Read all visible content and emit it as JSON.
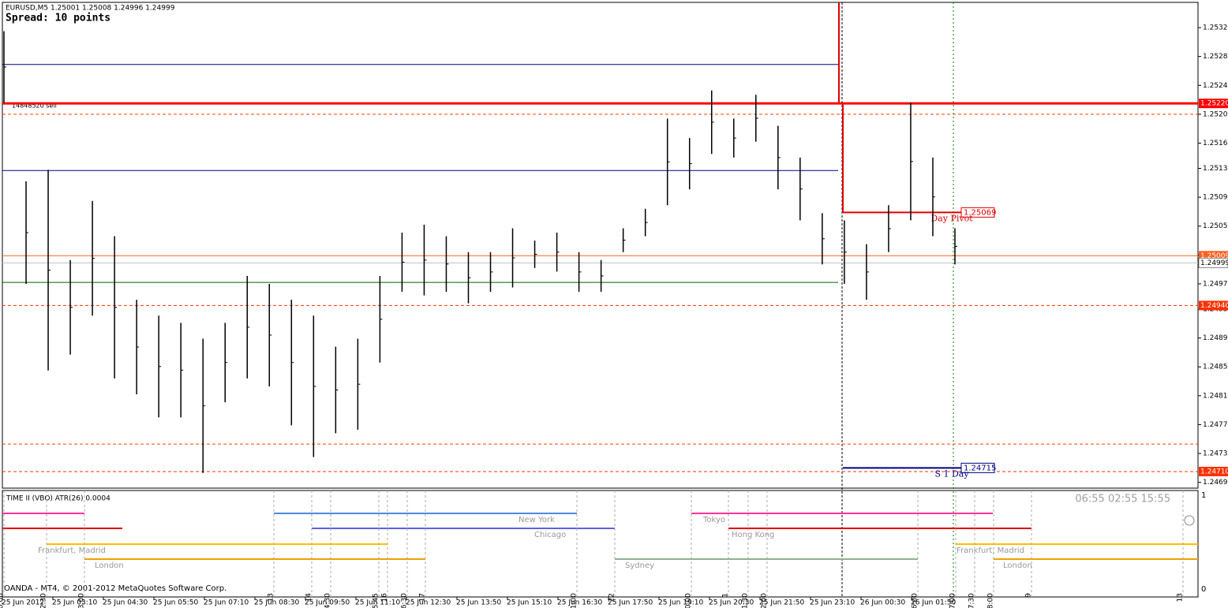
{
  "chart_data": {
    "type": "hilo",
    "title": "EURUSD,M5  1.25001 1.25008 1.24996 1.24999",
    "subtitle": "Spread: 10 points",
    "order_label": "14848520 sell",
    "color": "#000000",
    "high": [
      1.2532,
      1.25112,
      1.25128,
      1.25003,
      1.25085,
      1.25036,
      1.24948,
      1.24926,
      1.24916,
      1.24894,
      1.24916,
      1.24981,
      1.2497,
      1.24948,
      1.24926,
      1.24883,
      1.24894,
      1.24981,
      1.25041,
      1.25052,
      1.25036,
      1.25014,
      1.25014,
      1.25047,
      1.2503,
      1.25041,
      1.25014,
      1.25003,
      1.25047,
      1.25074,
      1.25199,
      1.25172,
      1.25238,
      1.25199,
      1.25232,
      1.25189,
      1.25145,
      1.25068,
      1.25058,
      1.25025,
      1.25079,
      1.25221,
      1.25145,
      1.25047
    ],
    "low": [
      1.25221,
      1.2497,
      1.2485,
      1.24872,
      1.24926,
      1.24839,
      1.24817,
      1.24785,
      1.24785,
      1.24708,
      1.24806,
      1.24839,
      1.24828,
      1.24774,
      1.2473,
      1.24763,
      1.24768,
      1.24861,
      1.24959,
      1.24954,
      1.24959,
      1.24943,
      1.24959,
      1.24965,
      1.24992,
      1.24987,
      1.24959,
      1.24959,
      1.25014,
      1.25036,
      1.25079,
      1.25101,
      1.2515,
      1.25145,
      1.25167,
      1.25101,
      1.25058,
      1.24997,
      1.2497,
      1.24948,
      1.25014,
      1.25058,
      1.25036,
      1.24997
    ],
    "ylim": [
      1.24687,
      1.2536
    ],
    "yticks": [
      1.25325,
      1.25285,
      1.25245,
      1.25205,
      1.25165,
      {
        "value": 1.2513,
        "label": "1.25130"
      },
      {
        "value": 1.2509,
        "label": "1.25090"
      },
      {
        "value": 1.2505,
        "label": "1.25050"
      },
      {
        "value": 1.2501,
        "label": "1.25010"
      },
      {
        "value": 1.2497,
        "label": "1.24970"
      },
      1.24935,
      1.24895,
      1.24855,
      1.24815,
      1.24775,
      1.24735,
      1.24695
    ],
    "levels": [
      {
        "value": 1.25274,
        "color": "#000080"
      },
      {
        "value": 1.25127,
        "color": "#000080"
      },
      {
        "value": 1.24972,
        "color": "#006400"
      },
      {
        "value": 1.2522,
        "label": "1.25220",
        "color": "#ff0000"
      },
      {
        "value": 1.25205,
        "color": "#ff4500"
      },
      {
        "value": 1.25009,
        "label": "1.25009",
        "color": "#ff6020"
      },
      {
        "value": 1.24999,
        "label": "1.24999",
        "color": "#c0c0c0"
      },
      {
        "value": 1.2494,
        "label": "1.24940",
        "color": "#ff3000"
      },
      {
        "value": 1.24748,
        "color": "#ff4500"
      },
      {
        "value": 1.2471,
        "label": "1.24710",
        "color": "#ff3000"
      }
    ],
    "pivots": [
      {
        "value": 1.25069,
        "label": "1.25069",
        "name": "Day Pivot",
        "color": "#e00000"
      },
      {
        "value": 1.24715,
        "label": "1.24715",
        "name": "S 1 Day",
        "color": "#000080"
      }
    ],
    "x_labels": [
      "25 Jun 2012",
      "25 Jun 03:10",
      "25 Jun 04:30",
      "25 Jun 05:50",
      "25 Jun 07:10",
      "25 Jun 08:30",
      "25 Jun 09:50",
      "25 Jun 11:10",
      "25 Jun 12:30",
      "25 Jun 13:50",
      "25 Jun 15:10",
      "25 Jun 16:30",
      "25 Jun 17:50",
      "25 Jun 19:10",
      "25 Jun 20:30",
      "25 Jun 21:50",
      "25 Jun 23:10",
      "26 Jun 00:30",
      "26 Jun 01:50"
    ]
  },
  "indicator_panel": {
    "header": "TIME II (VBO)  ATR(26) 0.0004",
    "clocks": "06:55  02:55  15:55",
    "axis_top": "1",
    "axis_bottom": "0",
    "footer": "OANDA - MT4, © 2001-2012 MetaQuotes Software Corp.",
    "sessions": [
      {
        "name": "New York",
        "color": "#4a8ae0"
      },
      {
        "name": "Chicago",
        "color": "#6060e0"
      },
      {
        "name": "Frankfurt, Madrid",
        "color": "#ffc000"
      },
      {
        "name": "London",
        "color": "#f0a000"
      },
      {
        "name": "Tokyo",
        "color": "#ff3399"
      },
      {
        "name": "Hong Kong",
        "color": "#e00000"
      },
      {
        "name": "Sydney",
        "color": "#90b090"
      },
      {
        "name": "Frankfurt, Madrid",
        "color": "#ffc000"
      },
      {
        "name": "London",
        "color": "#f0a000"
      }
    ],
    "marks": [
      "0:00",
      "2:30",
      "3:00",
      "13",
      "14",
      "14:30",
      "15:45",
      "16",
      "16:30",
      "17",
      "21:00",
      "22",
      "0:00",
      "1",
      "1:30",
      "2:00",
      "6:00",
      "7:00",
      "7:30",
      "8:00",
      "9",
      "13"
    ]
  }
}
